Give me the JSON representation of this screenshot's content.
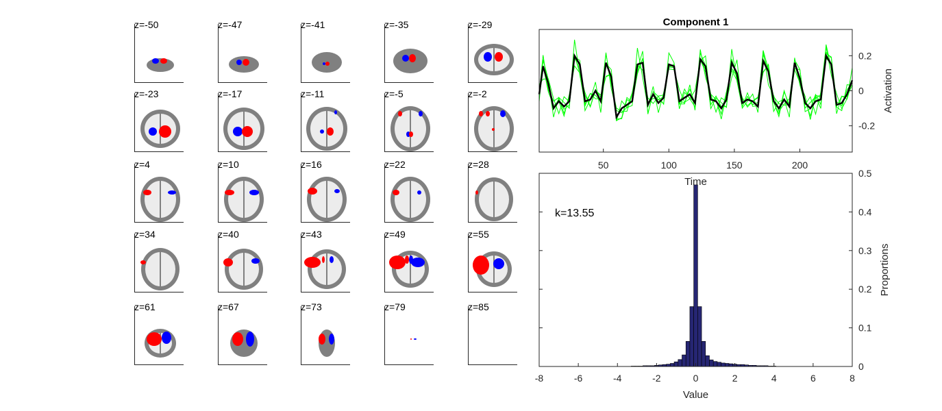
{
  "slices": {
    "labels": [
      "z=-50",
      "z=-47",
      "z=-41",
      "z=-35",
      "z=-29",
      "z=-23",
      "z=-17",
      "z=-11",
      "z=-5",
      "z=-2",
      "z=4",
      "z=10",
      "z=16",
      "z=22",
      "z=28",
      "z=34",
      "z=40",
      "z=43",
      "z=49",
      "z=55",
      "z=61",
      "z=67",
      "z=73",
      "z=79",
      "z=85"
    ],
    "colors": {
      "brain": "#808080",
      "positive": "#ff0000",
      "negative": "#0000ff"
    }
  },
  "chart_data": [
    {
      "type": "line",
      "title": "Component 1",
      "xlabel": "Time",
      "ylabel": "Activation",
      "xlim": [
        1,
        240
      ],
      "ylim": [
        -0.35,
        0.35
      ],
      "xticks": [
        50,
        100,
        150,
        200
      ],
      "xtick_labels": [
        "50",
        "100",
        "150",
        "200"
      ],
      "yticks": [
        -0.2,
        0,
        0.2
      ],
      "ytick_labels": [
        "-0.2",
        "0",
        "0.2"
      ],
      "series_colors": {
        "mean": "#000000",
        "subjects": "#00ff00"
      },
      "series": [
        {
          "x": [
            1,
            4,
            8,
            12,
            16,
            20,
            24,
            28,
            32,
            36,
            40,
            44,
            48,
            52,
            56,
            60,
            64,
            68,
            72,
            76,
            80,
            84,
            88,
            92,
            96,
            100,
            104,
            108,
            112,
            116,
            120,
            124,
            128,
            132,
            136,
            140,
            144,
            148,
            152,
            156,
            160,
            164,
            168,
            172,
            176,
            180,
            184,
            188,
            192,
            196,
            200,
            204,
            208,
            212,
            216,
            220,
            224,
            228,
            232,
            236,
            240
          ],
          "values": [
            -0.02,
            0.14,
            0.04,
            -0.1,
            -0.06,
            -0.09,
            -0.06,
            0.2,
            0.15,
            -0.06,
            -0.05,
            0.0,
            -0.06,
            0.16,
            0.08,
            -0.15,
            -0.1,
            -0.08,
            -0.06,
            0.15,
            0.16,
            -0.08,
            -0.02,
            -0.07,
            -0.04,
            0.15,
            0.14,
            -0.06,
            -0.04,
            -0.02,
            -0.07,
            0.18,
            0.14,
            -0.05,
            -0.06,
            -0.1,
            -0.05,
            0.16,
            0.1,
            -0.07,
            -0.05,
            -0.06,
            -0.09,
            0.17,
            0.11,
            -0.06,
            -0.1,
            -0.05,
            -0.09,
            0.16,
            0.07,
            -0.07,
            -0.1,
            -0.06,
            -0.05,
            0.2,
            0.15,
            -0.08,
            -0.07,
            -0.02,
            0.06
          ]
        }
      ]
    },
    {
      "type": "bar",
      "xlabel": "Value",
      "ylabel": "Proportions",
      "annotation": "k=13.55",
      "xlim": [
        -8,
        8
      ],
      "ylim": [
        0,
        0.5
      ],
      "xticks": [
        -8,
        -6,
        -4,
        -2,
        0,
        2,
        4,
        6,
        8
      ],
      "xtick_labels": [
        "-8",
        "-6",
        "-4",
        "-2",
        "0",
        "2",
        "4",
        "6",
        "8"
      ],
      "yticks": [
        0,
        0.1,
        0.2,
        0.3,
        0.4,
        0.5
      ],
      "ytick_labels": [
        "0",
        "0.1",
        "0.2",
        "0.3",
        "0.4",
        "0.5"
      ],
      "bar_color": "#262673",
      "bin_width": 0.2,
      "bin_centers": [
        -3.2,
        -3.0,
        -2.8,
        -2.6,
        -2.4,
        -2.2,
        -2.0,
        -1.8,
        -1.6,
        -1.4,
        -1.2,
        -1.0,
        -0.8,
        -0.6,
        -0.4,
        -0.2,
        0.0,
        0.2,
        0.4,
        0.6,
        0.8,
        1.0,
        1.2,
        1.4,
        1.6,
        1.8,
        2.0,
        2.2,
        2.4,
        2.6,
        2.8,
        3.0,
        3.2,
        3.4,
        3.6,
        3.8,
        4.0
      ],
      "values": [
        0.001,
        0.001,
        0.001,
        0.002,
        0.002,
        0.002,
        0.003,
        0.004,
        0.005,
        0.006,
        0.008,
        0.012,
        0.018,
        0.03,
        0.065,
        0.155,
        0.47,
        0.155,
        0.065,
        0.028,
        0.017,
        0.013,
        0.011,
        0.009,
        0.008,
        0.007,
        0.006,
        0.005,
        0.005,
        0.004,
        0.003,
        0.003,
        0.002,
        0.002,
        0.002,
        0.001,
        0.001
      ]
    }
  ]
}
